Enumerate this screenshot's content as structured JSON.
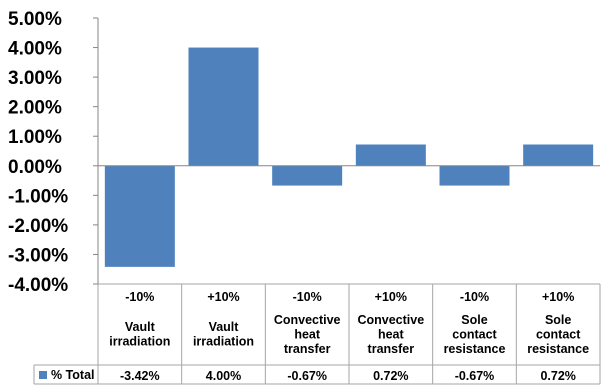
{
  "chart_data": {
    "type": "bar",
    "ylim": [
      -0.04,
      0.05
    ],
    "yticks": [
      "5.00%",
      "4.00%",
      "3.00%",
      "2.00%",
      "1.00%",
      "0.00%",
      "-1.00%",
      "-2.00%",
      "-3.00%",
      "-4.00%"
    ],
    "ytick_values": [
      0.05,
      0.04,
      0.03,
      0.02,
      0.01,
      0.0,
      -0.01,
      -0.02,
      -0.03,
      -0.04
    ],
    "categories": [
      {
        "change": "-10%",
        "lines": [
          "Vault",
          "irradiation"
        ]
      },
      {
        "change": "+10%",
        "lines": [
          "Vault",
          "irradiation"
        ]
      },
      {
        "change": "-10%",
        "lines": [
          "Convective",
          "heat",
          "transfer"
        ]
      },
      {
        "change": "+10%",
        "lines": [
          "Convective",
          "heat",
          "transfer"
        ]
      },
      {
        "change": "-10%",
        "lines": [
          "Sole",
          "contact",
          "resistance"
        ]
      },
      {
        "change": "+10%",
        "lines": [
          "Sole",
          "contact",
          "resistance"
        ]
      }
    ],
    "series": [
      {
        "name": "% Total",
        "color": "#4f81bd",
        "values": [
          -0.0342,
          0.04,
          -0.0067,
          0.0072,
          -0.0067,
          0.0072
        ],
        "labels": [
          "-3.42%",
          "4.00%",
          "-0.67%",
          "0.72%",
          "-0.67%",
          "0.72%"
        ]
      }
    ],
    "grid": false,
    "legend": "in data table"
  }
}
